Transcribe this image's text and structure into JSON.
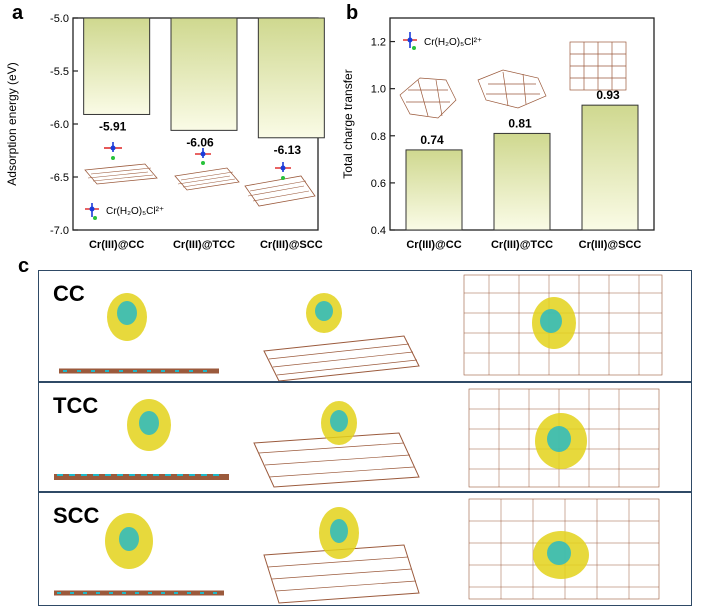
{
  "panels": {
    "a": "a",
    "b": "b",
    "c": "c"
  },
  "colors": {
    "bar_top": "#cfd88f",
    "bar_bottom": "#fafbe6",
    "bar_stroke": "#333333",
    "iso_yellow": "#e3d21a",
    "iso_cyan": "#1fb8c9",
    "carbon": "#9b5a3c"
  },
  "chart_data": [
    {
      "type": "bar",
      "categories": [
        "Cr(III)@CC",
        "Cr(III)@TCC",
        "Cr(III)@SCC"
      ],
      "values": [
        -5.91,
        -6.06,
        -6.13
      ],
      "value_labels": [
        "-5.91",
        "-6.06",
        "-6.13"
      ],
      "title": "",
      "xlabel": "",
      "ylabel": "Adsorption energy (eV)",
      "ylim": [
        -7.0,
        -5.0
      ],
      "yticks": [
        -5.0,
        -5.5,
        -6.0,
        -6.5,
        -7.0
      ],
      "ytick_labels": [
        "-5.0",
        "-5.5",
        "-6.0",
        "-6.5",
        "-7.0"
      ],
      "bar_origin": -5.0,
      "legend": "Cr(H₂O)₅Cl²⁺",
      "legend_position": "bottom-left"
    },
    {
      "type": "bar",
      "categories": [
        "Cr(III)@CC",
        "Cr(III)@TCC",
        "Cr(III)@SCC"
      ],
      "values": [
        0.74,
        0.81,
        0.93
      ],
      "value_labels": [
        "0.74",
        "0.81",
        "0.93"
      ],
      "title": "",
      "xlabel": "",
      "ylabel": "Total charge transfer",
      "ylim": [
        0.4,
        1.3
      ],
      "yticks": [
        0.4,
        0.6,
        0.8,
        1.0,
        1.2
      ],
      "ytick_labels": [
        "0.4",
        "0.6",
        "0.8",
        "1.0",
        "1.2"
      ],
      "bar_origin": 0.4,
      "legend": "Cr(H₂O)₅Cl²⁺",
      "legend_position": "top-left"
    }
  ],
  "panel_c": {
    "rows": [
      {
        "label": "CC"
      },
      {
        "label": "TCC"
      },
      {
        "label": "SCC"
      }
    ]
  }
}
